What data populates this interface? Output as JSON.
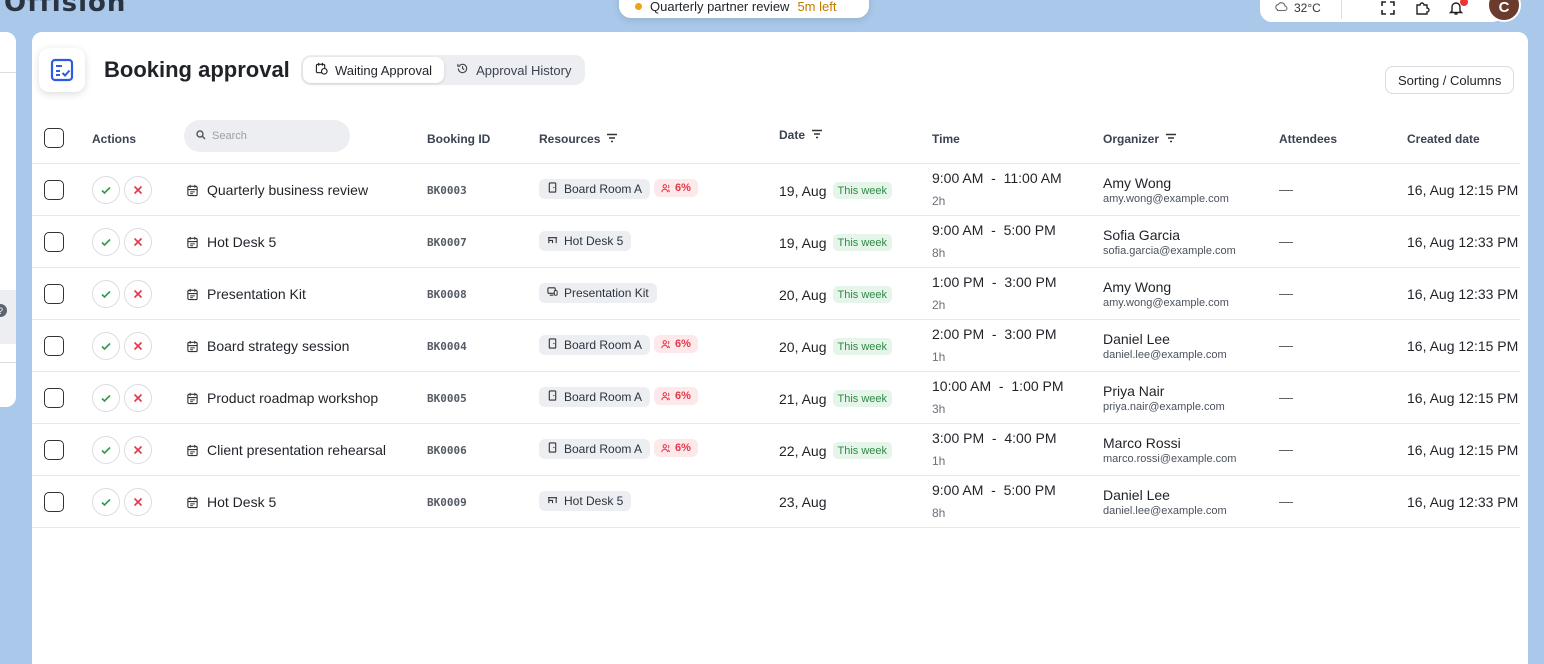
{
  "app": {
    "logo": "Offision"
  },
  "toast": {
    "text": "Quarterly partner review",
    "left": "5m left"
  },
  "topbar": {
    "weather_temp": "32°C",
    "avatar_initial": "C"
  },
  "page": {
    "title": "Booking approval",
    "tabs": [
      {
        "label": "Waiting Approval",
        "active": true
      },
      {
        "label": "Approval History",
        "active": false
      }
    ],
    "sort_button": "Sorting / Columns"
  },
  "table": {
    "headers": {
      "actions": "Actions",
      "search_placeholder": "Search",
      "booking_id": "Booking ID",
      "resources": "Resources",
      "date": "Date",
      "time": "Time",
      "organizer": "Organizer",
      "attendees": "Attendees",
      "created": "Created date"
    },
    "rows": [
      {
        "name": "Quarterly business review",
        "id": "BK0003",
        "resource": "Board Room A",
        "resource_icon": "door-icon",
        "occupancy": "6%",
        "date": "19, Aug",
        "week": "This week",
        "start": "9:00 AM",
        "end": "11:00 AM",
        "duration": "2h",
        "organizer": "Amy Wong",
        "email": "amy.wong@example.com",
        "attendees": "—",
        "created": "16, Aug 12:15 PM"
      },
      {
        "name": "Hot Desk 5",
        "id": "BK0007",
        "resource": "Hot Desk 5",
        "resource_icon": "desk-icon",
        "occupancy": "",
        "date": "19, Aug",
        "week": "This week",
        "start": "9:00 AM",
        "end": "5:00 PM",
        "duration": "8h",
        "organizer": "Sofia Garcia",
        "email": "sofia.garcia@example.com",
        "attendees": "—",
        "created": "16, Aug 12:33 PM"
      },
      {
        "name": "Presentation Kit",
        "id": "BK0008",
        "resource": "Presentation Kit",
        "resource_icon": "device-icon",
        "occupancy": "",
        "date": "20, Aug",
        "week": "This week",
        "start": "1:00 PM",
        "end": "3:00 PM",
        "duration": "2h",
        "organizer": "Amy Wong",
        "email": "amy.wong@example.com",
        "attendees": "—",
        "created": "16, Aug 12:33 PM"
      },
      {
        "name": "Board strategy session",
        "id": "BK0004",
        "resource": "Board Room A",
        "resource_icon": "door-icon",
        "occupancy": "6%",
        "date": "20, Aug",
        "week": "This week",
        "start": "2:00 PM",
        "end": "3:00 PM",
        "duration": "1h",
        "organizer": "Daniel Lee",
        "email": "daniel.lee@example.com",
        "attendees": "—",
        "created": "16, Aug 12:15 PM"
      },
      {
        "name": "Product roadmap workshop",
        "id": "BK0005",
        "resource": "Board Room A",
        "resource_icon": "door-icon",
        "occupancy": "6%",
        "date": "21, Aug",
        "week": "This week",
        "start": "10:00 AM",
        "end": "1:00 PM",
        "duration": "3h",
        "organizer": "Priya Nair",
        "email": "priya.nair@example.com",
        "attendees": "—",
        "created": "16, Aug 12:15 PM"
      },
      {
        "name": "Client presentation rehearsal",
        "id": "BK0006",
        "resource": "Board Room A",
        "resource_icon": "door-icon",
        "occupancy": "6%",
        "date": "22, Aug",
        "week": "This week",
        "start": "3:00 PM",
        "end": "4:00 PM",
        "duration": "1h",
        "organizer": "Marco Rossi",
        "email": "marco.rossi@example.com",
        "attendees": "—",
        "created": "16, Aug 12:15 PM"
      },
      {
        "name": "Hot Desk 5",
        "id": "BK0009",
        "resource": "Hot Desk 5",
        "resource_icon": "desk-icon",
        "occupancy": "",
        "date": "23, Aug",
        "week": "",
        "start": "9:00 AM",
        "end": "5:00 PM",
        "duration": "8h",
        "organizer": "Daniel Lee",
        "email": "daniel.lee@example.com",
        "attendees": "—",
        "created": "16, Aug 12:33 PM"
      }
    ]
  }
}
